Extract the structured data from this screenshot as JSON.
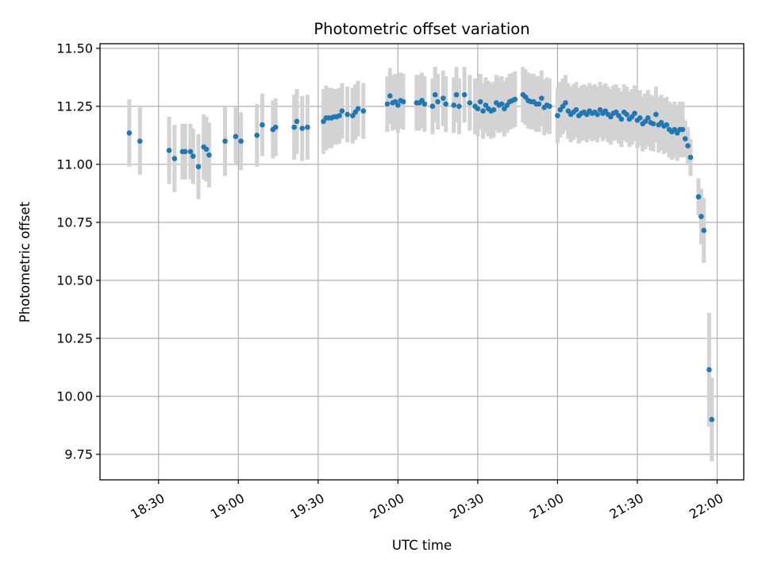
{
  "chart_data": {
    "type": "scatter",
    "title": "Photometric offset variation",
    "xlabel": "UTC time",
    "ylabel": "Photometric offset",
    "x_unit": "UTC time (HH:MM)",
    "xlim": [
      "18:08",
      "22:10"
    ],
    "ylim": [
      9.64,
      11.52
    ],
    "grid": true,
    "y_ticks": [
      9.75,
      10.0,
      10.25,
      10.5,
      10.75,
      11.0,
      11.25,
      11.5
    ],
    "y_tick_labels": [
      "9.75",
      "10.00",
      "10.25",
      "10.50",
      "10.75",
      "11.00",
      "11.25",
      "11.50"
    ],
    "x_ticks": [
      "18:30",
      "19:00",
      "19:30",
      "20:00",
      "20:30",
      "21:00",
      "21:30",
      "22:00"
    ],
    "x_tick_labels": [
      "18:30",
      "19:00",
      "19:30",
      "20:00",
      "20:30",
      "21:00",
      "21:30",
      "22:00"
    ],
    "colors": {
      "points": "#1f77b4",
      "error_bars": "#d3d3d3",
      "grid": "#b0b0b0"
    },
    "series": [
      {
        "points": [
          [
            "18:19",
            11.135,
            0.145
          ],
          [
            "18:23",
            11.1,
            0.145
          ],
          [
            "18:34",
            11.06,
            0.145
          ],
          [
            "18:36",
            11.025,
            0.145
          ],
          [
            "18:39",
            11.055,
            0.12
          ],
          [
            "18:40",
            11.055,
            0.12
          ],
          [
            "18:42",
            11.055,
            0.12
          ],
          [
            "18:43",
            11.035,
            0.12
          ],
          [
            "18:45",
            10.99,
            0.14
          ],
          [
            "18:47",
            11.075,
            0.14
          ],
          [
            "18:48",
            11.065,
            0.14
          ],
          [
            "18:49",
            11.04,
            0.14
          ],
          [
            "18:55",
            11.1,
            0.15
          ],
          [
            "18:59",
            11.12,
            0.125
          ],
          [
            "19:01",
            11.1,
            0.125
          ],
          [
            "19:07",
            11.125,
            0.135
          ],
          [
            "19:09",
            11.17,
            0.135
          ],
          [
            "19:13",
            11.15,
            0.125
          ],
          [
            "19:14",
            11.16,
            0.125
          ],
          [
            "19:21",
            11.16,
            0.14
          ],
          [
            "19:22",
            11.185,
            0.14
          ],
          [
            "19:24",
            11.155,
            0.14
          ],
          [
            "19:26",
            11.16,
            0.14
          ],
          [
            "19:32",
            11.185,
            0.14
          ],
          [
            "19:33",
            11.2,
            0.14
          ],
          [
            "19:34",
            11.2,
            0.13
          ],
          [
            "19:35",
            11.2,
            0.13
          ],
          [
            "19:36",
            11.205,
            0.12
          ],
          [
            "19:37",
            11.205,
            0.12
          ],
          [
            "19:38",
            11.21,
            0.12
          ],
          [
            "19:39",
            11.23,
            0.12
          ],
          [
            "19:41",
            11.215,
            0.12
          ],
          [
            "19:43",
            11.21,
            0.12
          ],
          [
            "19:44",
            11.225,
            0.12
          ],
          [
            "19:45",
            11.24,
            0.12
          ],
          [
            "19:47",
            11.23,
            0.12
          ],
          [
            "19:56",
            11.26,
            0.12
          ],
          [
            "19:57",
            11.295,
            0.12
          ],
          [
            "19:58",
            11.265,
            0.12
          ],
          [
            "19:59",
            11.27,
            0.12
          ],
          [
            "20:00",
            11.255,
            0.12
          ],
          [
            "20:01",
            11.275,
            0.12
          ],
          [
            "20:02",
            11.27,
            0.12
          ],
          [
            "20:07",
            11.265,
            0.12
          ],
          [
            "20:08",
            11.265,
            0.12
          ],
          [
            "20:09",
            11.275,
            0.12
          ],
          [
            "20:10",
            11.26,
            0.12
          ],
          [
            "20:13",
            11.25,
            0.12
          ],
          [
            "20:14",
            11.3,
            0.12
          ],
          [
            "20:15",
            11.27,
            0.12
          ],
          [
            "20:17",
            11.285,
            0.12
          ],
          [
            "20:18",
            11.26,
            0.12
          ],
          [
            "20:21",
            11.255,
            0.12
          ],
          [
            "20:22",
            11.3,
            0.12
          ],
          [
            "20:23",
            11.25,
            0.12
          ],
          [
            "20:25",
            11.3,
            0.12
          ],
          [
            "20:27",
            11.265,
            0.12
          ],
          [
            "20:29",
            11.25,
            0.12
          ],
          [
            "20:30",
            11.24,
            0.12
          ],
          [
            "20:31",
            11.27,
            0.12
          ],
          [
            "20:32",
            11.23,
            0.12
          ],
          [
            "20:33",
            11.255,
            0.12
          ],
          [
            "20:34",
            11.24,
            0.12
          ],
          [
            "20:35",
            11.23,
            0.12
          ],
          [
            "20:36",
            11.235,
            0.12
          ],
          [
            "20:37",
            11.265,
            0.12
          ],
          [
            "20:38",
            11.255,
            0.12
          ],
          [
            "20:39",
            11.26,
            0.12
          ],
          [
            "20:40",
            11.24,
            0.12
          ],
          [
            "20:41",
            11.255,
            0.12
          ],
          [
            "20:42",
            11.27,
            0.12
          ],
          [
            "20:43",
            11.275,
            0.12
          ],
          [
            "20:44",
            11.28,
            0.12
          ],
          [
            "20:47",
            11.3,
            0.12
          ],
          [
            "20:48",
            11.29,
            0.12
          ],
          [
            "20:49",
            11.275,
            0.12
          ],
          [
            "20:50",
            11.27,
            0.12
          ],
          [
            "20:51",
            11.27,
            0.12
          ],
          [
            "20:52",
            11.26,
            0.12
          ],
          [
            "20:53",
            11.26,
            0.12
          ],
          [
            "20:54",
            11.285,
            0.12
          ],
          [
            "20:55",
            11.245,
            0.12
          ],
          [
            "20:56",
            11.255,
            0.12
          ],
          [
            "20:57",
            11.25,
            0.12
          ],
          [
            "21:00",
            11.21,
            0.12
          ],
          [
            "21:01",
            11.235,
            0.12
          ],
          [
            "21:02",
            11.25,
            0.12
          ],
          [
            "21:03",
            11.265,
            0.12
          ],
          [
            "21:04",
            11.23,
            0.12
          ],
          [
            "21:05",
            11.215,
            0.12
          ],
          [
            "21:06",
            11.225,
            0.12
          ],
          [
            "21:07",
            11.235,
            0.12
          ],
          [
            "21:08",
            11.21,
            0.12
          ],
          [
            "21:09",
            11.22,
            0.12
          ],
          [
            "21:10",
            11.225,
            0.12
          ],
          [
            "21:11",
            11.215,
            0.12
          ],
          [
            "21:12",
            11.23,
            0.12
          ],
          [
            "21:13",
            11.22,
            0.12
          ],
          [
            "21:14",
            11.225,
            0.12
          ],
          [
            "21:15",
            11.215,
            0.12
          ],
          [
            "21:16",
            11.235,
            0.12
          ],
          [
            "21:17",
            11.22,
            0.12
          ],
          [
            "21:18",
            11.23,
            0.12
          ],
          [
            "21:19",
            11.215,
            0.12
          ],
          [
            "21:20",
            11.205,
            0.12
          ],
          [
            "21:21",
            11.22,
            0.12
          ],
          [
            "21:22",
            11.225,
            0.12
          ],
          [
            "21:23",
            11.21,
            0.12
          ],
          [
            "21:24",
            11.195,
            0.12
          ],
          [
            "21:25",
            11.225,
            0.12
          ],
          [
            "21:26",
            11.215,
            0.12
          ],
          [
            "21:27",
            11.195,
            0.12
          ],
          [
            "21:28",
            11.205,
            0.12
          ],
          [
            "21:29",
            11.22,
            0.12
          ],
          [
            "21:30",
            11.19,
            0.12
          ],
          [
            "21:31",
            11.2,
            0.12
          ],
          [
            "21:32",
            11.175,
            0.12
          ],
          [
            "21:33",
            11.185,
            0.12
          ],
          [
            "21:34",
            11.2,
            0.12
          ],
          [
            "21:35",
            11.18,
            0.12
          ],
          [
            "21:36",
            11.175,
            0.12
          ],
          [
            "21:37",
            11.215,
            0.12
          ],
          [
            "21:38",
            11.17,
            0.12
          ],
          [
            "21:39",
            11.18,
            0.12
          ],
          [
            "21:40",
            11.165,
            0.12
          ],
          [
            "21:41",
            11.17,
            0.12
          ],
          [
            "21:42",
            11.15,
            0.12
          ],
          [
            "21:43",
            11.14,
            0.12
          ],
          [
            "21:44",
            11.15,
            0.12
          ],
          [
            "21:45",
            11.135,
            0.12
          ],
          [
            "21:46",
            11.15,
            0.12
          ],
          [
            "21:47",
            11.15,
            0.12
          ],
          [
            "21:48",
            11.11,
            0.08
          ],
          [
            "21:49",
            11.08,
            0.08
          ],
          [
            "21:50",
            11.03,
            0.08
          ],
          [
            "21:53",
            10.86,
            0.08
          ],
          [
            "21:54",
            10.775,
            0.12
          ],
          [
            "21:55",
            10.715,
            0.14
          ],
          [
            "21:57",
            10.115,
            0.245
          ],
          [
            "21:58",
            9.9,
            0.18
          ]
        ]
      }
    ]
  }
}
